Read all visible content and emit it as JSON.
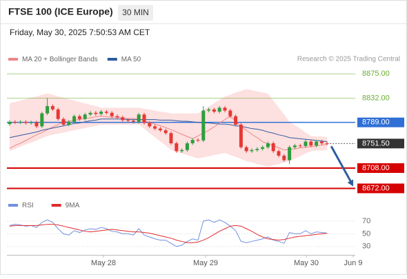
{
  "header": {
    "title": "FTSE 100 (ICE Europe)",
    "interval": "30 MIN",
    "datetime": "Friday, May 30, 2025 7:50:53 AM CET",
    "credit": "Research © 2025 Trading Central"
  },
  "x_axis": {
    "labels": [
      "May 28",
      "May 29",
      "May 30",
      "Jun 9"
    ]
  },
  "chart_data": [
    {
      "type": "candlestick",
      "up_color": "#2e9e3e",
      "down_color": "#e53935",
      "ylim": [
        8664,
        8890
      ],
      "open": [
        8786,
        8790,
        8789,
        8790,
        8788,
        8789,
        8782,
        8805,
        8818,
        8812,
        8795,
        8785,
        8790,
        8800,
        8795,
        8803,
        8806,
        8804,
        8808,
        8806,
        8800,
        8798,
        8793,
        8792,
        8790,
        8803,
        8788,
        8782,
        8778,
        8775,
        8770,
        8752,
        8738,
        8740,
        8752,
        8758,
        8757,
        8810,
        8812,
        8808,
        8815,
        8810,
        8800,
        8785,
        8745,
        8738,
        8740,
        8742,
        8745,
        8752,
        8738,
        8730,
        8722,
        8745,
        8748,
        8747,
        8755,
        8748,
        8755,
        8752
      ],
      "high": [
        8793,
        8793,
        8793,
        8793,
        8792,
        8792,
        8808,
        8832,
        8821,
        8815,
        8798,
        8793,
        8803,
        8803,
        8806,
        8809,
        8809,
        8811,
        8811,
        8809,
        8803,
        8801,
        8796,
        8795,
        8806,
        8806,
        8791,
        8785,
        8781,
        8778,
        8773,
        8755,
        8743,
        8755,
        8761,
        8761,
        8818,
        8815,
        8815,
        8818,
        8818,
        8813,
        8803,
        8788,
        8748,
        8743,
        8745,
        8748,
        8755,
        8755,
        8741,
        8733,
        8748,
        8751,
        8751,
        8758,
        8758,
        8758,
        8758,
        8755
      ],
      "low": [
        8783,
        8786,
        8786,
        8785,
        8785,
        8779,
        8779,
        8802,
        8809,
        8792,
        8782,
        8782,
        8787,
        8792,
        8792,
        8800,
        8801,
        8801,
        8803,
        8797,
        8795,
        8790,
        8789,
        8787,
        8787,
        8785,
        8779,
        8775,
        8772,
        8767,
        8749,
        8735,
        8735,
        8737,
        8749,
        8754,
        8754,
        8807,
        8805,
        8805,
        8807,
        8797,
        8782,
        8742,
        8735,
        8735,
        8737,
        8739,
        8742,
        8735,
        8727,
        8719,
        8715,
        8742,
        8744,
        8744,
        8745,
        8745,
        8749,
        8748.5
      ],
      "close": [
        8790,
        8789,
        8790,
        8788,
        8789,
        8782,
        8805,
        8818,
        8812,
        8795,
        8785,
        8790,
        8800,
        8795,
        8803,
        8806,
        8804,
        8808,
        8806,
        8800,
        8798,
        8793,
        8792,
        8790,
        8803,
        8788,
        8782,
        8778,
        8775,
        8770,
        8752,
        8738,
        8740,
        8752,
        8758,
        8757,
        8810,
        8812,
        8808,
        8815,
        8810,
        8800,
        8785,
        8745,
        8738,
        8740,
        8742,
        8745,
        8752,
        8738,
        8730,
        8722,
        8745,
        8748,
        8747,
        8755,
        8748,
        8755,
        8752,
        8751.5
      ],
      "overlays": [
        {
          "name": "MA 20 + Bollinger Bands",
          "color": "#ef8585",
          "band_color": "#fde0e0",
          "values": [
            8743,
            8748,
            8752,
            8757,
            8762,
            8767,
            8771,
            8776,
            8781,
            8785,
            8790,
            8791,
            8793,
            8794,
            8796,
            8797,
            8799,
            8800,
            8799,
            8798,
            8798,
            8797,
            8796,
            8796,
            8795,
            8792,
            8789,
            8786,
            8783,
            8780,
            8776,
            8772,
            8768,
            8764,
            8760,
            8765,
            8770,
            8775,
            8781,
            8788,
            8794,
            8800,
            8791,
            8782,
            8775,
            8768,
            8762,
            8755,
            8751,
            8748,
            8744,
            8740,
            8741,
            8742,
            8744,
            8745,
            8746,
            8747,
            8749,
            8750
          ],
          "upper": [
            8823,
            8825,
            8828,
            8830,
            8833,
            8835,
            8838,
            8840,
            8838,
            8835,
            8833,
            8830,
            8828,
            8825,
            8823,
            8820,
            8818,
            8815,
            8815,
            8815,
            8815,
            8815,
            8815,
            8815,
            8815,
            8813,
            8812,
            8810,
            8808,
            8807,
            8805,
            8805,
            8805,
            8805,
            8805,
            8805,
            8811,
            8817,
            8823,
            8829,
            8835,
            8838,
            8842,
            8845,
            8848,
            8846,
            8844,
            8842,
            8840,
            8828,
            8815,
            8803,
            8790,
            8784,
            8778,
            8771,
            8765,
            8764,
            8764,
            8763
          ],
          "lower": [
            8738,
            8742,
            8746,
            8750,
            8753,
            8757,
            8761,
            8765,
            8767,
            8769,
            8771,
            8773,
            8775,
            8777,
            8779,
            8781,
            8783,
            8785,
            8785,
            8785,
            8785,
            8785,
            8785,
            8785,
            8785,
            8778,
            8770,
            8763,
            8755,
            8748,
            8740,
            8737,
            8734,
            8731,
            8728,
            8725,
            8727,
            8729,
            8731,
            8733,
            8735,
            8731,
            8728,
            8724,
            8720,
            8718,
            8715,
            8713,
            8710,
            8713,
            8715,
            8718,
            8720,
            8725,
            8729,
            8734,
            8738,
            8739,
            8739,
            8740
          ]
        },
        {
          "name": "MA 50",
          "color": "#2d5a9e",
          "values": [
            8762,
            8764,
            8766,
            8768,
            8770,
            8772,
            8775,
            8777,
            8779,
            8781,
            8783,
            8785,
            8787,
            8788,
            8790,
            8792,
            8793,
            8795,
            8795,
            8795,
            8795,
            8795,
            8794,
            8794,
            8794,
            8794,
            8794,
            8794,
            8793,
            8793,
            8793,
            8792,
            8791,
            8791,
            8790,
            8789,
            8788,
            8788,
            8787,
            8786,
            8786,
            8785,
            8783,
            8782,
            8780,
            8778,
            8777,
            8775,
            8772,
            8770,
            8767,
            8765,
            8762,
            8761,
            8760,
            8759,
            8758,
            8757,
            8756,
            8755
          ]
        }
      ],
      "levels": [
        {
          "value": 8875,
          "label": "8875.00",
          "color": "#6aad2e",
          "boxed": false
        },
        {
          "value": 8832,
          "label": "8832.00",
          "color": "#6aad2e",
          "boxed": false
        },
        {
          "value": 8789,
          "label": "8789.00",
          "color": "#2f6fd6",
          "boxed": true
        },
        {
          "value": 8708,
          "label": "8708.00",
          "color": "#d60000",
          "boxed": true
        },
        {
          "value": 8672,
          "label": "8672.00",
          "color": "#d60000",
          "boxed": true
        }
      ],
      "last": {
        "value": 8751.5,
        "label": "8751.50",
        "color": "#333333"
      }
    },
    {
      "type": "line",
      "ylim": [
        20,
        80
      ],
      "yticks": [
        30,
        50,
        70
      ],
      "grid": true,
      "series": [
        {
          "name": "RSI",
          "color": "#6f8fe0",
          "values": [
            63,
            65,
            64,
            62,
            63,
            60,
            68,
            72,
            68,
            58,
            50,
            48,
            55,
            52,
            56,
            58,
            57,
            60,
            58,
            54,
            53,
            50,
            50,
            48,
            58,
            48,
            45,
            42,
            40,
            40,
            35,
            30,
            32,
            38,
            42,
            40,
            70,
            72,
            68,
            72,
            68,
            62,
            55,
            38,
            36,
            38,
            40,
            42,
            45,
            40,
            38,
            35,
            52,
            50,
            50,
            55,
            50,
            53,
            52,
            51
          ]
        },
        {
          "name": "9MA",
          "color": "#e02b2b",
          "values": [
            62,
            63,
            63,
            63,
            63,
            63,
            64,
            65,
            65,
            64,
            62,
            60,
            58,
            56,
            54,
            53,
            54,
            55,
            56,
            57,
            56,
            55,
            54,
            53,
            53,
            52,
            51,
            49,
            47,
            45,
            43,
            40,
            38,
            36,
            36,
            37,
            40,
            44,
            49,
            54,
            58,
            62,
            63,
            62,
            58,
            54,
            49,
            45,
            42,
            41,
            40,
            41,
            43,
            45,
            46,
            47,
            48,
            49,
            50,
            51
          ]
        }
      ]
    }
  ]
}
